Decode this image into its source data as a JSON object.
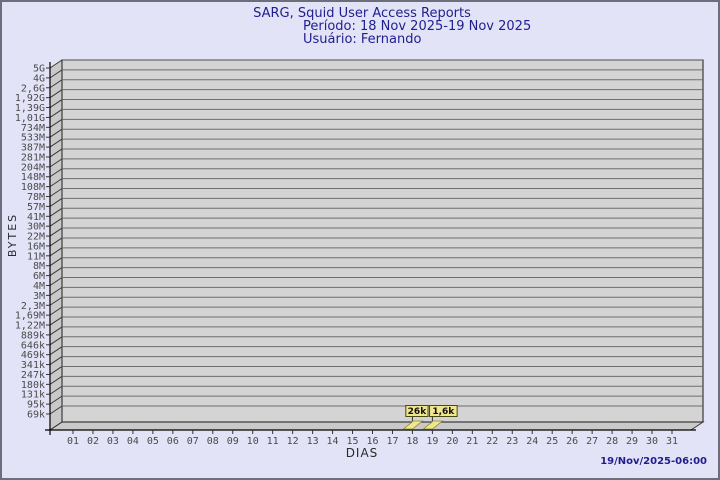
{
  "title": {
    "line1": "SARG, Squid User Access Reports",
    "line2": "Período: 18 Nov 2025-19 Nov 2025",
    "line3": "Usuário: Fernando"
  },
  "footer": {
    "timestamp": "19/Nov/2025-06:00"
  },
  "chart_data": {
    "type": "bar",
    "title": "SARG, Squid User Access Reports",
    "subtitle": "Período: 18 Nov 2025-19 Nov 2025",
    "user_line": "Usuário: Fernando",
    "xlabel": "DIAS",
    "ylabel": "BYTES",
    "scale_y": "log",
    "grid": "horizontal",
    "x_categories": [
      "01",
      "02",
      "03",
      "04",
      "05",
      "06",
      "07",
      "08",
      "09",
      "10",
      "11",
      "12",
      "13",
      "14",
      "15",
      "16",
      "17",
      "18",
      "19",
      "20",
      "21",
      "22",
      "23",
      "24",
      "25",
      "26",
      "27",
      "28",
      "29",
      "30",
      "31"
    ],
    "y_ticks_top_to_bottom": [
      "5G",
      "4G",
      "2,6G",
      "1,92G",
      "1,39G",
      "1,01G",
      "734M",
      "533M",
      "387M",
      "281M",
      "204M",
      "148M",
      "108M",
      "78M",
      "57M",
      "41M",
      "30M",
      "22M",
      "16M",
      "11M",
      "8M",
      "6M",
      "4M",
      "3M",
      "2,3M",
      "1,69M",
      "1,22M",
      "889k",
      "646k",
      "469k",
      "341k",
      "247k",
      "180k",
      "131k",
      "95k",
      "69k"
    ],
    "ylim_labels": [
      "69k",
      "5G"
    ],
    "bars": [
      {
        "day": "18",
        "value_label": "26k",
        "value_bytes": 26000
      },
      {
        "day": "19",
        "value_label": "1,6k",
        "value_bytes": 1600
      }
    ],
    "colors": {
      "background": "#e3e3f7",
      "plot_bg": "#d4d4d4",
      "wall": "#c9c9c9",
      "grid_line": "#6e6e6e",
      "box_edge": "#3a3a3a",
      "axis_line": "#000000",
      "tick_text": "#4a4a4a",
      "title_text": "#1e1e8f",
      "bar_fill": "#f0e68c",
      "bar_edge": "#8a8a2a",
      "label_box_bg": "#f0e68c",
      "label_box_border": "#4a4a10",
      "label_text": "#111111"
    }
  }
}
